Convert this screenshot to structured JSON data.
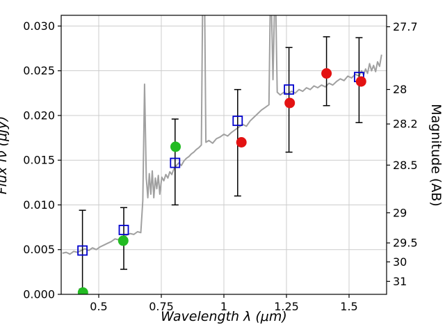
{
  "figure": {
    "background": "#ffffff"
  },
  "chart_data": {
    "type": "line+scatter",
    "title": "",
    "xlabel": "Wavelength λ (μm)",
    "ylabel_left": "Flux fν (μJy)",
    "ylabel_right": "Magnitude (AB)",
    "xlim": [
      0.35,
      1.65
    ],
    "ylim": [
      0,
      0.0312
    ],
    "grid": true,
    "colors": {
      "spectrum": "#a0a0a0",
      "blue_squares": "#0000cd",
      "green_circles": "#22bb22",
      "red_circles": "#e31212",
      "errorbar": "#000000",
      "grid": "#cccccc",
      "spine": "#000000"
    },
    "x_ticks": [
      {
        "v": 0.5,
        "label": "0.5"
      },
      {
        "v": 0.75,
        "label": "0.75"
      },
      {
        "v": 1.0,
        "label": "1"
      },
      {
        "v": 1.25,
        "label": "1.25"
      },
      {
        "v": 1.5,
        "label": "1.5"
      }
    ],
    "y_ticks_left": [
      {
        "v": 0.0,
        "label": "0.000"
      },
      {
        "v": 0.005,
        "label": "0.005"
      },
      {
        "v": 0.01,
        "label": "0.010"
      },
      {
        "v": 0.015,
        "label": "0.015"
      },
      {
        "v": 0.02,
        "label": "0.020"
      },
      {
        "v": 0.025,
        "label": "0.025"
      },
      {
        "v": 0.03,
        "label": "0.030"
      }
    ],
    "y_ticks_right": [
      {
        "v": 0.02992,
        "label": "27.7"
      },
      {
        "v": 0.02291,
        "label": "28"
      },
      {
        "v": 0.01905,
        "label": "28.2"
      },
      {
        "v": 0.01445,
        "label": "28.5"
      },
      {
        "v": 0.00912,
        "label": "29"
      },
      {
        "v": 0.00575,
        "label": "29.5"
      },
      {
        "v": 0.00363,
        "label": "30"
      },
      {
        "v": 0.00145,
        "label": "31"
      }
    ],
    "spectrum": [
      [
        0.355,
        0.0046
      ],
      [
        0.37,
        0.0047
      ],
      [
        0.385,
        0.0045
      ],
      [
        0.4,
        0.0048
      ],
      [
        0.415,
        0.0047
      ],
      [
        0.43,
        0.0049
      ],
      [
        0.445,
        0.0051
      ],
      [
        0.46,
        0.0049
      ],
      [
        0.475,
        0.0052
      ],
      [
        0.49,
        0.005
      ],
      [
        0.505,
        0.0053
      ],
      [
        0.52,
        0.0055
      ],
      [
        0.535,
        0.0057
      ],
      [
        0.55,
        0.0059
      ],
      [
        0.565,
        0.0062
      ],
      [
        0.58,
        0.0061
      ],
      [
        0.595,
        0.0064
      ],
      [
        0.61,
        0.0066
      ],
      [
        0.625,
        0.0068
      ],
      [
        0.64,
        0.0067
      ],
      [
        0.655,
        0.007
      ],
      [
        0.668,
        0.0069
      ],
      [
        0.676,
        0.0105
      ],
      [
        0.683,
        0.0235
      ],
      [
        0.69,
        0.013
      ],
      [
        0.696,
        0.0108
      ],
      [
        0.702,
        0.0135
      ],
      [
        0.708,
        0.0112
      ],
      [
        0.714,
        0.0138
      ],
      [
        0.72,
        0.0108
      ],
      [
        0.726,
        0.013
      ],
      [
        0.732,
        0.0118
      ],
      [
        0.738,
        0.0133
      ],
      [
        0.744,
        0.0112
      ],
      [
        0.752,
        0.0131
      ],
      [
        0.76,
        0.0127
      ],
      [
        0.768,
        0.0134
      ],
      [
        0.776,
        0.013
      ],
      [
        0.784,
        0.0137
      ],
      [
        0.792,
        0.0134
      ],
      [
        0.8,
        0.014
      ],
      [
        0.81,
        0.0144
      ],
      [
        0.82,
        0.0147
      ],
      [
        0.83,
        0.0144
      ],
      [
        0.84,
        0.0149
      ],
      [
        0.85,
        0.0152
      ],
      [
        0.86,
        0.0154
      ],
      [
        0.87,
        0.0157
      ],
      [
        0.88,
        0.0159
      ],
      [
        0.89,
        0.0162
      ],
      [
        0.9,
        0.0164
      ],
      [
        0.91,
        0.0167
      ],
      [
        0.916,
        0.036
      ],
      [
        0.922,
        0.036
      ],
      [
        0.928,
        0.017
      ],
      [
        0.94,
        0.0172
      ],
      [
        0.955,
        0.0169
      ],
      [
        0.97,
        0.0174
      ],
      [
        0.985,
        0.0176
      ],
      [
        1.0,
        0.0179
      ],
      [
        1.015,
        0.0177
      ],
      [
        1.03,
        0.0181
      ],
      [
        1.045,
        0.0184
      ],
      [
        1.06,
        0.0187
      ],
      [
        1.075,
        0.019
      ],
      [
        1.09,
        0.0188
      ],
      [
        1.105,
        0.0194
      ],
      [
        1.12,
        0.0198
      ],
      [
        1.135,
        0.0202
      ],
      [
        1.15,
        0.0206
      ],
      [
        1.165,
        0.0209
      ],
      [
        1.18,
        0.0212
      ],
      [
        1.187,
        0.036
      ],
      [
        1.196,
        0.024
      ],
      [
        1.205,
        0.036
      ],
      [
        1.213,
        0.0226
      ],
      [
        1.225,
        0.0223
      ],
      [
        1.24,
        0.0226
      ],
      [
        1.255,
        0.0224
      ],
      [
        1.27,
        0.0227
      ],
      [
        1.285,
        0.0225
      ],
      [
        1.3,
        0.0229
      ],
      [
        1.315,
        0.0227
      ],
      [
        1.33,
        0.0231
      ],
      [
        1.345,
        0.0229
      ],
      [
        1.36,
        0.0233
      ],
      [
        1.375,
        0.0231
      ],
      [
        1.39,
        0.0234
      ],
      [
        1.405,
        0.0232
      ],
      [
        1.42,
        0.0236
      ],
      [
        1.435,
        0.0234
      ],
      [
        1.45,
        0.0238
      ],
      [
        1.465,
        0.0241
      ],
      [
        1.48,
        0.0239
      ],
      [
        1.495,
        0.0244
      ],
      [
        1.51,
        0.0242
      ],
      [
        1.525,
        0.0246
      ],
      [
        1.54,
        0.0244
      ],
      [
        1.55,
        0.025
      ],
      [
        1.558,
        0.0245
      ],
      [
        1.566,
        0.0252
      ],
      [
        1.574,
        0.0247
      ],
      [
        1.582,
        0.0258
      ],
      [
        1.59,
        0.025
      ],
      [
        1.598,
        0.0256
      ],
      [
        1.606,
        0.0249
      ],
      [
        1.614,
        0.026
      ],
      [
        1.622,
        0.0255
      ],
      [
        1.63,
        0.0268
      ]
    ],
    "series": [
      {
        "name": "observed-photometry-blue-open-squares",
        "marker": "square-open",
        "color": "#0000cd",
        "points": [
          {
            "x": 0.435,
            "y": 0.0049,
            "ylo": 0.0006,
            "yhi": 0.0094
          },
          {
            "x": 0.6,
            "y": 0.0072,
            "ylo": 0.0028,
            "yhi": 0.0097
          },
          {
            "x": 0.805,
            "y": 0.0147,
            "ylo": 0.01,
            "yhi": 0.0196
          },
          {
            "x": 1.055,
            "y": 0.0194,
            "ylo": 0.011,
            "yhi": 0.0229
          },
          {
            "x": 1.26,
            "y": 0.0229,
            "ylo": 0.0159,
            "yhi": 0.0276
          },
          {
            "x": 1.54,
            "y": 0.0243,
            "ylo": 0.0192,
            "yhi": 0.0287
          }
        ]
      },
      {
        "name": "model-photometry-green-circles",
        "marker": "circle",
        "color": "#22bb22",
        "points": [
          {
            "x": 0.437,
            "y": 0.0002
          },
          {
            "x": 0.598,
            "y": 0.006
          },
          {
            "x": 0.807,
            "y": 0.0165
          }
        ]
      },
      {
        "name": "model-photometry-red-circles",
        "marker": "circle",
        "color": "#e31212",
        "points": [
          {
            "x": 1.07,
            "y": 0.017
          },
          {
            "x": 1.263,
            "y": 0.0214
          },
          {
            "x": 1.41,
            "y": 0.0247,
            "ylo": 0.0211,
            "yhi": 0.0288
          },
          {
            "x": 1.548,
            "y": 0.0238
          }
        ]
      }
    ]
  }
}
